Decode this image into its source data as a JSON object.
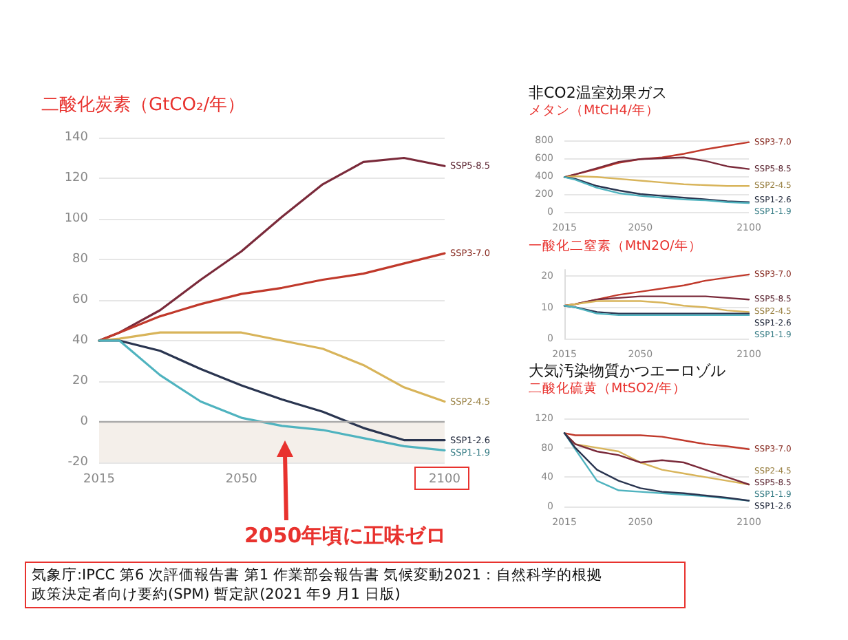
{
  "chart_data": [
    {
      "type": "line",
      "subtitle": "二酸化炭素（GtCO₂/年）",
      "x": [
        2015,
        2020,
        2030,
        2040,
        2050,
        2060,
        2070,
        2080,
        2090,
        2100
      ],
      "series": [
        {
          "name": "SSP5-8.5",
          "color": "#7a2a3a",
          "values": [
            40,
            44,
            55,
            70,
            84,
            101,
            117,
            128,
            130,
            126
          ]
        },
        {
          "name": "SSP3-7.0",
          "color": "#c0392b",
          "values": [
            40,
            44,
            52,
            58,
            63,
            66,
            70,
            73,
            78,
            83
          ]
        },
        {
          "name": "SSP2-4.5",
          "color": "#d8b45a",
          "values": [
            40,
            41,
            44,
            44,
            44,
            40,
            36,
            28,
            17,
            10
          ]
        },
        {
          "name": "SSP1-2.6",
          "color": "#2a3550",
          "values": [
            40,
            40,
            35,
            26,
            18,
            11,
            5,
            -3,
            -9,
            -9
          ]
        },
        {
          "name": "SSP1-1.9",
          "color": "#4fb3bf",
          "values": [
            40,
            40,
            23,
            10,
            2,
            -2,
            -4,
            -8,
            -12,
            -14
          ]
        }
      ],
      "xlim": [
        2015,
        2100
      ],
      "xticks": [
        2015,
        2050,
        2100
      ],
      "ylim": [
        -20,
        140
      ],
      "yticks": [
        -20,
        0,
        20,
        40,
        60,
        80,
        100,
        120,
        140
      ],
      "bands": [
        {
          "axis": "y",
          "from": -20,
          "to": 0,
          "color": "#f4efea"
        }
      ],
      "ref_lines": [
        {
          "axis": "y",
          "value": 0,
          "color": "#aaaaaa"
        }
      ],
      "annotations": [
        "2050年頃に正味ゼロ",
        "気象庁:IPCC 第6 次評価報告書 第1 作業部会報告書 気候変動2021：自然科学的根拠",
        "政策決定者向け要約(SPM) 暫定訳(2021 年9 月1 日版)"
      ],
      "grid": "y",
      "legend": false,
      "marker": "none"
    },
    {
      "type": "line",
      "title": "非CO2温室効果ガス",
      "subtitle": "メタン（MtCH4/年）",
      "x": [
        2015,
        2020,
        2030,
        2040,
        2050,
        2060,
        2070,
        2080,
        2090,
        2100
      ],
      "series": [
        {
          "name": "SSP3-7.0",
          "color": "#c0392b",
          "values": [
            390,
            420,
            480,
            550,
            590,
            610,
            650,
            700,
            740,
            780
          ]
        },
        {
          "name": "SSP5-8.5",
          "color": "#7a2a3a",
          "values": [
            390,
            420,
            490,
            560,
            590,
            600,
            610,
            570,
            510,
            480
          ]
        },
        {
          "name": "SSP2-4.5",
          "color": "#d8b45a",
          "values": [
            390,
            400,
            390,
            370,
            350,
            330,
            310,
            300,
            290,
            290
          ]
        },
        {
          "name": "SSP1-2.6",
          "color": "#2a3550",
          "values": [
            390,
            370,
            290,
            240,
            200,
            180,
            160,
            140,
            120,
            110
          ]
        },
        {
          "name": "SSP1-1.9",
          "color": "#4fb3bf",
          "values": [
            390,
            360,
            270,
            210,
            180,
            160,
            140,
            130,
            110,
            100
          ]
        }
      ],
      "xlim": [
        2015,
        2100
      ],
      "xticks": [
        2015,
        2050,
        2100
      ],
      "ylim": [
        0,
        800
      ],
      "yticks": [
        0,
        200,
        400,
        600,
        800
      ],
      "grid": "y",
      "legend": false,
      "marker": "none"
    },
    {
      "type": "line",
      "subtitle": "一酸化二窒素（MtN2O/年）",
      "x": [
        2015,
        2020,
        2030,
        2040,
        2050,
        2060,
        2070,
        2080,
        2090,
        2100
      ],
      "series": [
        {
          "name": "SSP3-7.0",
          "color": "#c0392b",
          "values": [
            10.5,
            11,
            12.5,
            14,
            15,
            16,
            17,
            18.5,
            19.5,
            20.5
          ]
        },
        {
          "name": "SSP5-8.5",
          "color": "#7a2a3a",
          "values": [
            10.5,
            11,
            12.5,
            13,
            13.5,
            13.5,
            13.5,
            13.5,
            13,
            12.5
          ]
        },
        {
          "name": "SSP2-4.5",
          "color": "#d8b45a",
          "values": [
            10.5,
            11,
            12,
            12,
            12,
            11.5,
            10.5,
            10,
            9,
            8.5
          ]
        },
        {
          "name": "SSP1-2.6",
          "color": "#2a3550",
          "values": [
            10.5,
            10,
            8.5,
            8,
            8,
            8,
            8,
            8,
            8,
            8
          ]
        },
        {
          "name": "SSP1-1.9",
          "color": "#4fb3bf",
          "values": [
            10.5,
            10,
            8,
            7.5,
            7.5,
            7.5,
            7.5,
            7.5,
            7.5,
            7.5
          ]
        }
      ],
      "xlim": [
        2015,
        2100
      ],
      "xticks": [
        2015,
        2050,
        2100
      ],
      "ylim": [
        0,
        22
      ],
      "yticks": [
        0,
        10,
        20
      ],
      "grid": "y",
      "legend": false,
      "marker": "none"
    },
    {
      "type": "line",
      "title": "大気汚染物質かつエーロゾル",
      "subtitle": "二酸化硫黄（MtSO2/年）",
      "x": [
        2015,
        2020,
        2030,
        2040,
        2050,
        2060,
        2070,
        2080,
        2090,
        2100
      ],
      "series": [
        {
          "name": "SSP3-7.0",
          "color": "#c0392b",
          "values": [
            100,
            97,
            97,
            97,
            97,
            95,
            90,
            85,
            82,
            78
          ]
        },
        {
          "name": "SSP2-4.5",
          "color": "#d8b45a",
          "values": [
            100,
            85,
            80,
            75,
            60,
            50,
            45,
            40,
            35,
            30
          ]
        },
        {
          "name": "SSP5-8.5",
          "color": "#7a2a3a",
          "values": [
            100,
            85,
            75,
            70,
            60,
            63,
            60,
            50,
            40,
            30
          ]
        },
        {
          "name": "SSP1-1.9",
          "color": "#4fb3bf",
          "values": [
            100,
            78,
            35,
            22,
            20,
            18,
            16,
            14,
            11,
            8
          ]
        },
        {
          "name": "SSP1-2.6",
          "color": "#2a3550",
          "values": [
            100,
            80,
            50,
            35,
            25,
            20,
            18,
            15,
            12,
            8
          ]
        }
      ],
      "xlim": [
        2015,
        2100
      ],
      "xticks": [
        2015,
        2050,
        2100
      ],
      "ylim": [
        0,
        120
      ],
      "yticks": [
        0,
        40,
        80,
        120
      ],
      "grid": "y",
      "legend": false,
      "marker": "none"
    }
  ]
}
